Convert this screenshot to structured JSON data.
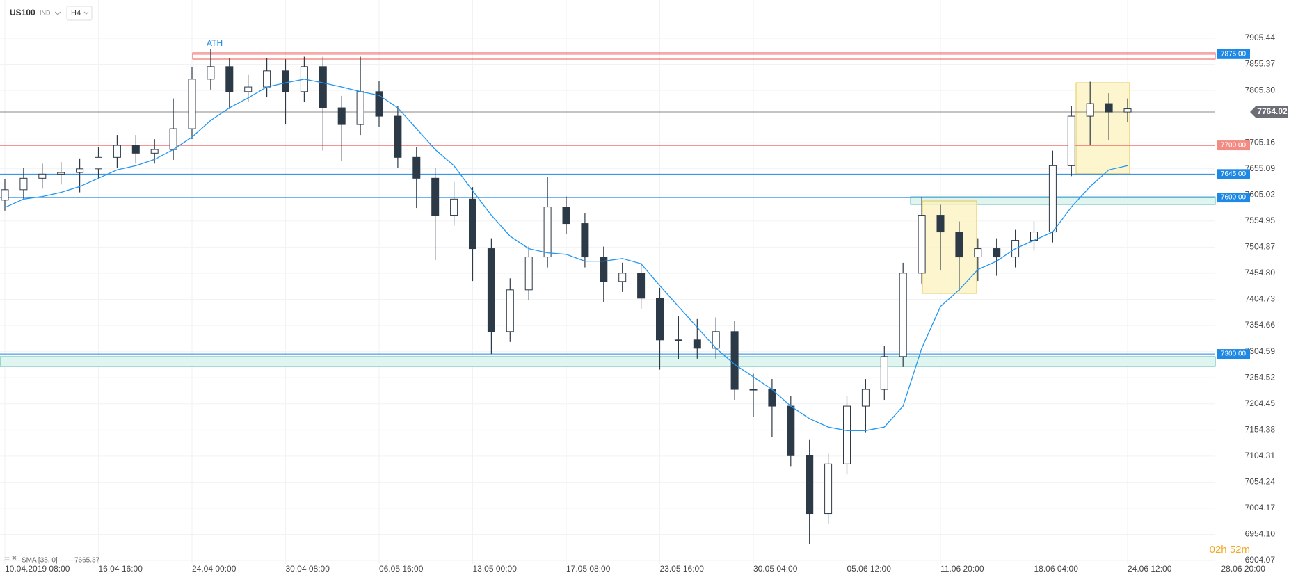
{
  "chart_data": {
    "type": "candlestick",
    "symbol": "US100",
    "market": "IND",
    "timeframe": "H4",
    "annotation": "ATH",
    "timer": "02h 52m",
    "grid": true,
    "bull_color": "#ffffff",
    "bear_color": "#2c3a48",
    "categories": [
      "10.04.2019 08:00",
      null,
      null,
      null,
      null,
      "16.04 16:00",
      null,
      null,
      null,
      null,
      "24.04 00:00",
      null,
      null,
      null,
      null,
      "30.04 08:00",
      null,
      null,
      null,
      null,
      "06.05 16:00",
      null,
      null,
      null,
      null,
      "13.05 00:00",
      null,
      null,
      null,
      null,
      "17.05 08:00",
      null,
      null,
      null,
      null,
      "23.05 16:00",
      null,
      null,
      null,
      null,
      "30.05 04:00",
      null,
      null,
      null,
      null,
      "05.06 12:00",
      null,
      null,
      null,
      null,
      "11.06 20:00",
      null,
      null,
      null,
      null,
      "18.06 04:00",
      null,
      null,
      null,
      null,
      "24.06 12:00",
      null,
      null,
      null,
      null,
      "28.06 20:00",
      null,
      null
    ],
    "open": [
      7595,
      7615,
      7637,
      7645,
      7648,
      7655,
      7677,
      7700,
      7685,
      7692,
      7732,
      7827,
      7851,
      7803,
      7812,
      7843,
      7803,
      7851,
      7772,
      7740,
      7803,
      7756,
      7677,
      7637,
      7566,
      7597,
      7502,
      7343,
      7423,
      7486,
      7582,
      7550,
      7486,
      7439,
      7455,
      7407,
      7327,
      7327,
      7311,
      7343,
      7232,
      7232,
      7200,
      7105,
      6994,
      7089,
      7200,
      7232,
      7295,
      7455,
      7566,
      7534,
      7486,
      7502,
      7486,
      7518,
      7534,
      7661,
      7756,
      7780,
      7764,
      null,
      null,
      null,
      null,
      null,
      null,
      null
    ],
    "high": [
      7635,
      7657,
      7665,
      7668,
      7675,
      7697,
      7720,
      7720,
      7712,
      7790,
      7850,
      7885,
      7868,
      7835,
      7868,
      7865,
      7870,
      7870,
      7795,
      7870,
      7823,
      7776,
      7697,
      7657,
      7630,
      7620,
      7522,
      7445,
      7506,
      7640,
      7602,
      7570,
      7506,
      7475,
      7475,
      7427,
      7372,
      7367,
      7370,
      7363,
      7262,
      7252,
      7220,
      7135,
      7109,
      7220,
      7252,
      7315,
      7475,
      7600,
      7586,
      7554,
      7522,
      7522,
      7538,
      7554,
      7690,
      7776,
      7822,
      7800,
      7790,
      null,
      null,
      null,
      null,
      null,
      null,
      null
    ],
    "low": [
      7575,
      7595,
      7617,
      7625,
      7610,
      7635,
      7657,
      7665,
      7665,
      7672,
      7712,
      7807,
      7770,
      7783,
      7792,
      7740,
      7783,
      7690,
      7670,
      7720,
      7736,
      7657,
      7580,
      7480,
      7546,
      7440,
      7300,
      7323,
      7403,
      7466,
      7530,
      7466,
      7400,
      7419,
      7387,
      7270,
      7290,
      7291,
      7291,
      7212,
      7180,
      7140,
      7085,
      6935,
      6974,
      7069,
      7150,
      7212,
      7275,
      7435,
      7460,
      7420,
      7440,
      7450,
      7466,
      7498,
      7514,
      7641,
      7700,
      7710,
      7744,
      null,
      null,
      null,
      null,
      null,
      null,
      null
    ],
    "close": [
      7615,
      7637,
      7645,
      7648,
      7655,
      7677,
      7700,
      7685,
      7692,
      7732,
      7827,
      7851,
      7803,
      7812,
      7843,
      7803,
      7851,
      7772,
      7740,
      7803,
      7756,
      7677,
      7637,
      7566,
      7597,
      7502,
      7343,
      7423,
      7486,
      7582,
      7550,
      7486,
      7439,
      7455,
      7407,
      7327,
      7327,
      7311,
      7343,
      7232,
      7232,
      7200,
      7105,
      6994,
      7089,
      7200,
      7232,
      7295,
      7455,
      7566,
      7534,
      7486,
      7502,
      7486,
      7518,
      7534,
      7661,
      7756,
      7780,
      7764,
      7770,
      null,
      null,
      null,
      null,
      null,
      null,
      null
    ],
    "sma": {
      "name": "SMA [35, 0]",
      "last_value": 7665.37,
      "color": "#2196f3",
      "values": [
        7581,
        7597,
        7602,
        7610,
        7621,
        7637,
        7653,
        7661,
        7673,
        7692,
        7716,
        7748,
        7772,
        7791,
        7812,
        7820,
        7827,
        7820,
        7812,
        7803,
        7796,
        7772,
        7732,
        7692,
        7661,
        7613,
        7566,
        7526,
        7502,
        7494,
        7491,
        7478,
        7478,
        7483,
        7473,
        7431,
        7391,
        7351,
        7311,
        7280,
        7256,
        7232,
        7200,
        7176,
        7160,
        7153,
        7153,
        7160,
        7200,
        7311,
        7391,
        7423,
        7462,
        7478,
        7502,
        7518,
        7534,
        7582,
        7621,
        7653,
        7661,
        null,
        null,
        null,
        null,
        null,
        null,
        null
      ]
    },
    "ylim": [
      6904.07,
      7905.44
    ],
    "yticks": [
      7905.44,
      7855.37,
      {
        "value": 7805.3,
        "label": "7805.30"
      },
      7705.16,
      7655.09,
      7605.02,
      7554.95,
      7504.87,
      {
        "value": 7454.8,
        "label": "7454.80"
      },
      7404.73,
      7354.66,
      7304.59,
      7254.52,
      7204.45,
      7154.38,
      7104.31,
      7054.24,
      7004.17,
      {
        "value": 6954.1,
        "label": "6954.10"
      },
      6904.07
    ],
    "levels": [
      {
        "value": 7875,
        "label": "7875.00",
        "color": "#ef5350",
        "label_color": "#1e88e5"
      },
      {
        "value": 7700,
        "label": "7700.00",
        "color": "#ef5350",
        "label_color": "#f28b82"
      },
      {
        "value": 7645,
        "label": "7645.00",
        "color": "#1e88e5",
        "label_color": "#1e88e5"
      },
      {
        "value": 7600,
        "label": "7600.00",
        "color": "#1e88e5",
        "label_color": "#1e88e5"
      },
      {
        "value": 7300,
        "label": "7300.00",
        "color": "#1e88e5",
        "label_color": "#1e88e5"
      }
    ],
    "current_price": 7764.02
  }
}
